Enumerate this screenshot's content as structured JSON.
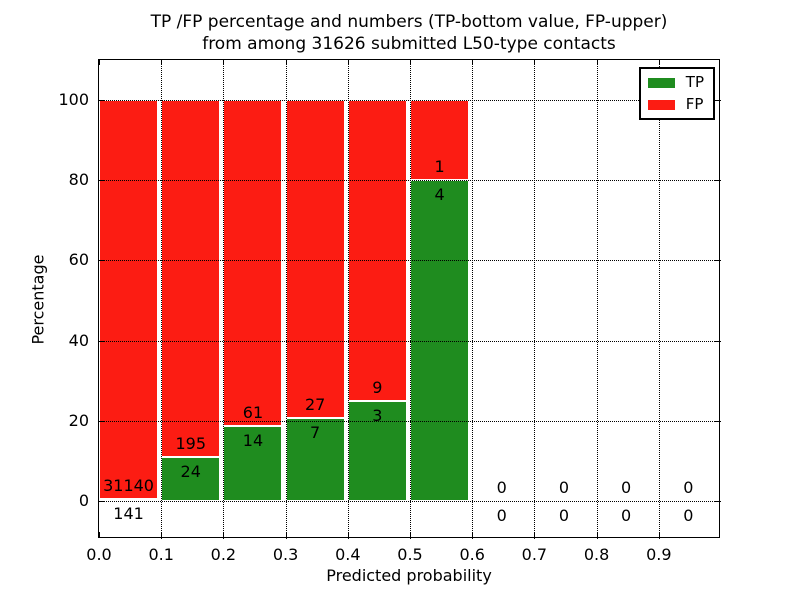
{
  "title": {
    "line1": "TP /FP percentage and numbers (TP-bottom value, FP-upper)",
    "line2": "from among 31626 submitted L50-type contacts"
  },
  "axes": {
    "xlabel": "Predicted probability",
    "ylabel": "Percentage",
    "xtick_labels": [
      "0.0",
      "0.1",
      "0.2",
      "0.3",
      "0.4",
      "0.5",
      "0.6",
      "0.7",
      "0.8",
      "0.9"
    ],
    "ytick_labels": [
      "0",
      "20",
      "40",
      "60",
      "80",
      "100"
    ],
    "ytick_values": [
      0,
      20,
      40,
      60,
      80,
      100
    ]
  },
  "legend": {
    "entries": [
      {
        "label": "TP",
        "color": "#1f8c1f"
      },
      {
        "label": "FP",
        "color": "#fc1c13"
      }
    ]
  },
  "colors": {
    "tp": "#1f8c1f",
    "fp": "#fc1c13",
    "grid": "#000000",
    "frame": "#000000",
    "background": "#ffffff"
  },
  "chart_data": {
    "type": "bar",
    "stacked": true,
    "title": "TP /FP percentage and numbers (TP-bottom value, FP-upper) from among 31626 submitted L50-type contacts",
    "xlabel": "Predicted probability",
    "ylabel": "Percentage",
    "total_contacts": 31626,
    "bin_starts": [
      0.0,
      0.1,
      0.2,
      0.3,
      0.4,
      0.5,
      0.6,
      0.7,
      0.8,
      0.9
    ],
    "bin_width": 0.1,
    "bar_width": 0.095,
    "series": [
      {
        "name": "TP",
        "color": "#1f8c1f",
        "counts": [
          141,
          24,
          14,
          7,
          3,
          4,
          0,
          0,
          0,
          0
        ]
      },
      {
        "name": "FP",
        "color": "#fc1c13",
        "counts": [
          31140,
          195,
          61,
          27,
          9,
          1,
          0,
          0,
          0,
          0
        ]
      }
    ],
    "tp_percentages": [
      0.45,
      10.96,
      18.67,
      20.59,
      25.0,
      80.0,
      null,
      null,
      null,
      null
    ],
    "xlim": [
      0.0,
      1.0
    ],
    "ylim": [
      -9.5,
      110
    ],
    "grid": "dotted",
    "legend_position": "upper right"
  }
}
